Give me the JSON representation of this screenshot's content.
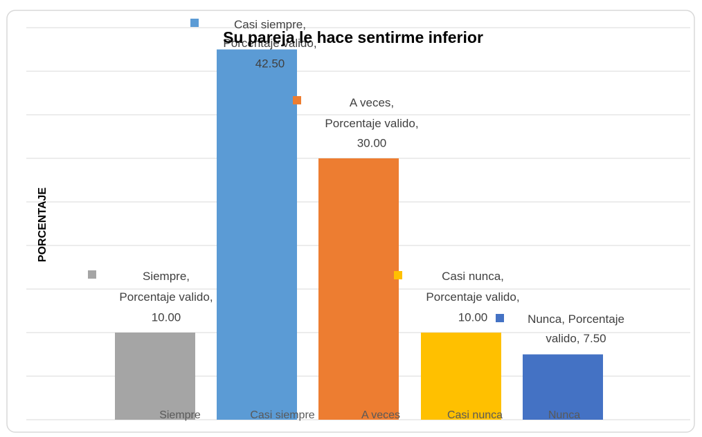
{
  "chart_data": {
    "type": "bar",
    "title": "Su pareja le hace sentirme inferior",
    "y_axis_label": "PORCENTAJE",
    "categories": [
      "Siempre",
      "Casi siempre",
      "A veces",
      "Casi nunca",
      "Nunca"
    ],
    "series": [
      {
        "name": "Porcentaje valido",
        "colors": [
          "#a5a5a5",
          "#5b9bd5",
          "#ed7d31",
          "#ffc000",
          "#4472c4"
        ],
        "values": [
          10,
          42.5,
          30,
          10,
          7.5
        ],
        "value_labels": [
          "10.00",
          "42.50",
          "30.00",
          "10.00",
          "7.50"
        ],
        "label_lines": [
          [
            "Siempre,",
            "Porcentaje valido,"
          ],
          [
            "Casi siempre,",
            "Porcentaje valido,"
          ],
          [
            "A veces,",
            "Porcentaje valido,"
          ],
          [
            "Casi nunca,",
            "Porcentaje valido,"
          ],
          [
            "Nunca, Porcentaje",
            "valido,"
          ]
        ]
      }
    ],
    "ylim": [
      0,
      45
    ],
    "yticks": [
      0,
      5,
      10,
      15,
      20,
      25,
      30,
      35,
      40,
      45
    ],
    "grid": true
  }
}
